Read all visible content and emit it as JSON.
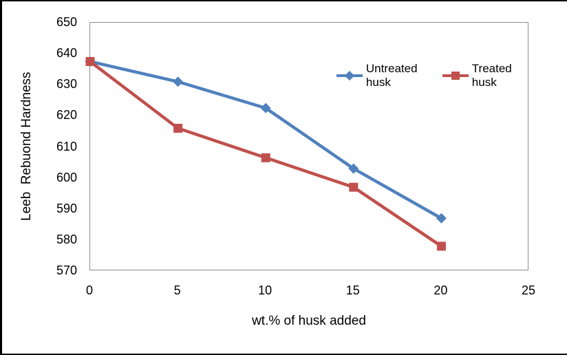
{
  "figure": {
    "background_color": "#ffffff",
    "scan_edge_color": "#000000",
    "plot_border_color": "#8C8C8C"
  },
  "chart_data": {
    "type": "line",
    "title": "",
    "xlabel": "wt.% of husk added",
    "ylabel": "Leeb  Rebuond Hardness",
    "x": [
      0,
      5,
      10,
      15,
      20
    ],
    "series": [
      {
        "name": "Untreated husk",
        "color": "#4F81BD",
        "marker": "diamond",
        "values": [
          637.5,
          631,
          622.5,
          603,
          587
        ]
      },
      {
        "name": "Treated husk",
        "color": "#C0504D",
        "marker": "square",
        "values": [
          637.5,
          616,
          606.5,
          597,
          578
        ]
      }
    ],
    "xlim": [
      0,
      25
    ],
    "ylim": [
      570,
      650
    ],
    "x_ticks": [
      "0",
      "5",
      "10",
      "15",
      "20",
      "25"
    ],
    "y_ticks": [
      "650",
      "640",
      "630",
      "620",
      "610",
      "600",
      "590",
      "580",
      "570"
    ],
    "grid": false,
    "legend_position": "top-inside",
    "line_width": 4.5
  }
}
